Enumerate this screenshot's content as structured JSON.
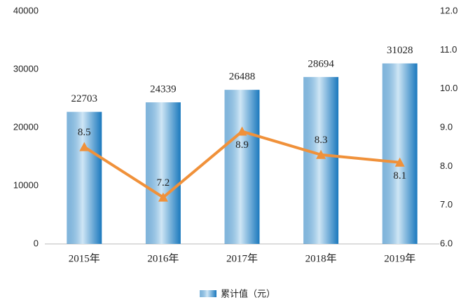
{
  "chart_data": {
    "type": "bar-line",
    "categories": [
      "2015年",
      "2016年",
      "2017年",
      "2018年",
      "2019年"
    ],
    "series": [
      {
        "name": "累计值（元）",
        "type": "bar",
        "color": "#1a78bd",
        "values": [
          22703,
          24339,
          26488,
          28694,
          31028
        ]
      },
      {
        "type": "line",
        "axis": "y2",
        "color": "#f0913a",
        "values": [
          8.5,
          7.2,
          8.9,
          8.3,
          8.1
        ]
      }
    ],
    "ylim": [
      0,
      40000
    ],
    "yticks": [
      0,
      10000,
      20000,
      30000,
      40000
    ],
    "y2lim": [
      6,
      12
    ],
    "y2ticks": [
      {
        "value": 6,
        "label": "6.0"
      },
      {
        "value": 7,
        "label": "7.0"
      },
      {
        "value": 8,
        "label": "8.0"
      },
      {
        "value": 9,
        "label": "9.0"
      },
      {
        "value": 10,
        "label": "10.0"
      },
      {
        "value": 11,
        "label": "11.0"
      },
      {
        "value": 12,
        "label": "12.0"
      }
    ],
    "grid": false,
    "legend": "bottom"
  }
}
